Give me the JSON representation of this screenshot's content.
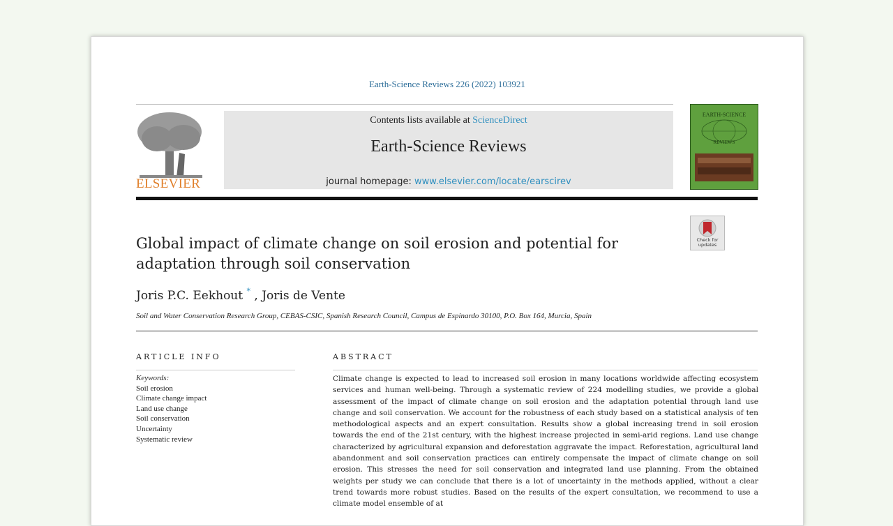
{
  "citation": "Earth-Science Reviews 226 (2022) 103921",
  "banner": {
    "contents_prefix": "Contents lists available at",
    "contents_link": "ScienceDirect",
    "journal_name": "Earth-Science Reviews",
    "homepage_prefix": "journal homepage:",
    "homepage_link": "www.elsevier.com/locate/earscirev"
  },
  "publisher": "ELSEVIER",
  "cover": {
    "title": "EARTH-SCIENCE",
    "subtitle": "REVIEWS",
    "color": "#5fa03e"
  },
  "check_updates": "Check for updates",
  "article": {
    "title": "Global impact of climate change on soil erosion and potential for adaptation through soil conservation",
    "author1": "Joris P.C. Eekhout",
    "author_mark": "*",
    "author2": ", Joris de Vente",
    "affiliation": "Soil and Water Conservation Research Group, CEBAS-CSIC, Spanish Research Council, Campus de Espinardo 30100, P.O. Box 164, Murcia, Spain"
  },
  "info": {
    "heading": "ARTICLE INFO",
    "keywords_label": "Keywords:",
    "keywords": [
      "Soil erosion",
      "Climate change impact",
      "Land use change",
      "Soil conservation",
      "Uncertainty",
      "Systematic review"
    ]
  },
  "abstract": {
    "heading": "ABSTRACT",
    "text": "Climate change is expected to lead to increased soil erosion in many locations worldwide affecting ecosystem services and human well-being. Through a systematic review of 224 modelling studies, we provide a global assessment of the impact of climate change on soil erosion and the adaptation potential through land use change and soil conservation. We account for the robustness of each study based on a statistical analysis of ten methodological aspects and an expert consultation. Results show a global increasing trend in soil erosion towards the end of the 21st century, with the highest increase projected in semi-arid regions. Land use change characterized by agricultural expansion and deforestation aggravate the impact. Reforestation, agricultural land abandonment and soil conservation practices can entirely compensate the impact of climate change on soil erosion. This stresses the need for soil conservation and integrated land use planning. From the obtained weights per study we can conclude that there is a lot of uncertainty in the methods applied, without a clear trend towards more robust studies. Based on the results of the expert consultation, we recommend to use a climate model ensemble of at"
  }
}
